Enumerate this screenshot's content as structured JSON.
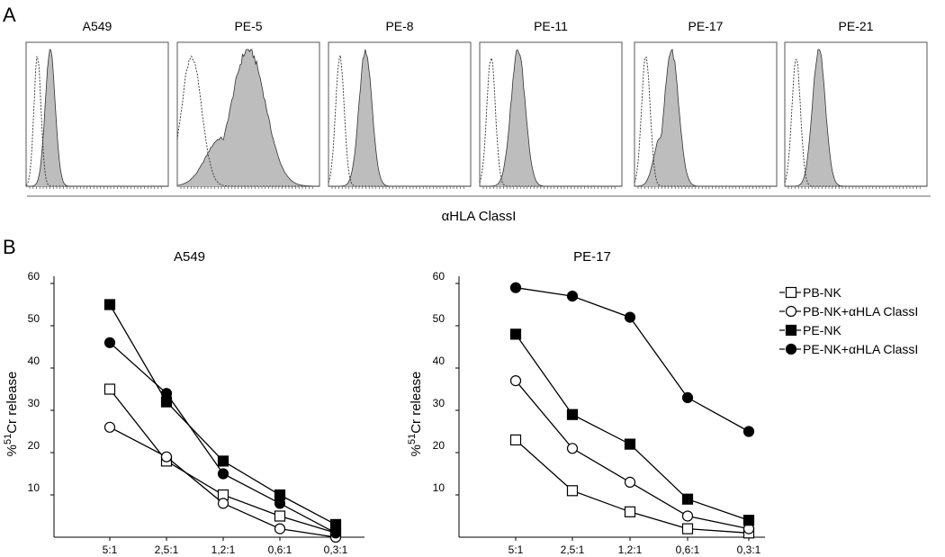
{
  "panel_a": {
    "label": "A",
    "xlabel": "αHLA ClassI",
    "histograms": [
      {
        "title": "A549",
        "iso_center": 0.08,
        "iso_sd": 0.025,
        "st_center": 0.17,
        "st_sd": 0.035,
        "st_shoulder": false
      },
      {
        "title": "PE-5",
        "iso_center": 0.1,
        "iso_sd": 0.07,
        "st_center": 0.5,
        "st_sd": 0.12,
        "st_shoulder": true
      },
      {
        "title": "PE-8",
        "iso_center": 0.08,
        "iso_sd": 0.03,
        "st_center": 0.26,
        "st_sd": 0.045,
        "st_shoulder": false
      },
      {
        "title": "PE-11",
        "iso_center": 0.08,
        "iso_sd": 0.03,
        "st_center": 0.27,
        "st_sd": 0.05,
        "st_shoulder": false
      },
      {
        "title": "PE-17",
        "iso_center": 0.08,
        "iso_sd": 0.03,
        "st_center": 0.26,
        "st_sd": 0.05,
        "st_shoulder": true
      },
      {
        "title": "PE-21",
        "iso_center": 0.08,
        "iso_sd": 0.03,
        "st_center": 0.24,
        "st_sd": 0.045,
        "st_shoulder": false
      }
    ]
  },
  "panel_b": {
    "label": "B",
    "legend_position": "right"
  },
  "chart_data": [
    {
      "type": "line",
      "title": "A549",
      "ylabel": "%51Cr release",
      "ylabel_prefix": "%",
      "ylabel_sup": "51",
      "ylabel_rest": "Cr release",
      "categories": [
        "5:1",
        "2,5:1",
        "1,2:1",
        "0,6:1",
        "0,3:1"
      ],
      "yticks": [
        10,
        20,
        30,
        40,
        50,
        60
      ],
      "ylim": [
        0,
        60
      ],
      "series": [
        {
          "name": "PB-NK",
          "marker": "square-open",
          "values": [
            35,
            18,
            10,
            5,
            1
          ]
        },
        {
          "name": "PB-NK+αHLA ClassI",
          "marker": "circle-open",
          "values": [
            26,
            19,
            8,
            2,
            0
          ]
        },
        {
          "name": "PE-NK",
          "marker": "square-filled",
          "values": [
            55,
            32,
            18,
            10,
            3
          ]
        },
        {
          "name": "PE-NK+αHLA ClassI",
          "marker": "circle-filled",
          "values": [
            46,
            34,
            15,
            8,
            1
          ]
        }
      ]
    },
    {
      "type": "line",
      "title": "PE-17",
      "ylabel": "%51Cr release",
      "ylabel_prefix": "%",
      "ylabel_sup": "51",
      "ylabel_rest": "Cr release",
      "categories": [
        "5:1",
        "2,5:1",
        "1,2:1",
        "0,6:1",
        "0,3:1"
      ],
      "yticks": [
        10,
        20,
        30,
        40,
        50,
        60
      ],
      "ylim": [
        0,
        60
      ],
      "series": [
        {
          "name": "PB-NK",
          "marker": "square-open",
          "values": [
            23,
            11,
            6,
            2,
            1
          ]
        },
        {
          "name": "PB-NK+αHLA ClassI",
          "marker": "circle-open",
          "values": [
            37,
            21,
            13,
            5,
            2
          ]
        },
        {
          "name": "PE-NK",
          "marker": "square-filled",
          "values": [
            48,
            29,
            22,
            9,
            4
          ]
        },
        {
          "name": "PE-NK+αHLA ClassI",
          "marker": "circle-filled",
          "values": [
            59,
            57,
            52,
            33,
            25
          ]
        }
      ]
    }
  ]
}
